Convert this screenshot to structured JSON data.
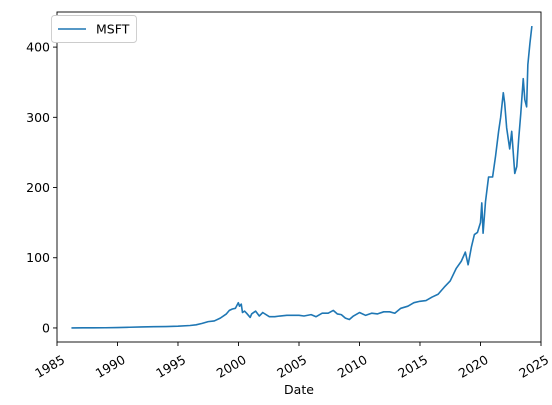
{
  "chart_data": {
    "type": "line",
    "xlabel": "Date",
    "ylabel": "",
    "xlim": [
      "1985-01-01",
      "2025-01-01"
    ],
    "ylim": [
      -20,
      450
    ],
    "x_ticks": [
      "1985",
      "1990",
      "1995",
      "2000",
      "2005",
      "2010",
      "2015",
      "2020",
      "2025"
    ],
    "y_ticks": [
      0,
      100,
      200,
      300,
      400
    ],
    "grid": false,
    "legend": "top-left",
    "colors": {
      "series": "#1f77b4",
      "axes": "#000000",
      "background": "#ffffff"
    },
    "series": [
      {
        "name": "MSFT",
        "points": [
          [
            "1986-03-13",
            0.07
          ],
          [
            "1987-03-01",
            0.2
          ],
          [
            "1988-01-01",
            0.25
          ],
          [
            "1989-01-01",
            0.3
          ],
          [
            "1990-01-01",
            0.6
          ],
          [
            "1991-01-01",
            1.0
          ],
          [
            "1992-01-01",
            1.5
          ],
          [
            "1993-01-01",
            1.8
          ],
          [
            "1994-01-01",
            2.0
          ],
          [
            "1995-01-01",
            2.5
          ],
          [
            "1996-01-01",
            3.5
          ],
          [
            "1996-07-01",
            4.5
          ],
          [
            "1997-01-01",
            6.5
          ],
          [
            "1997-07-01",
            9.0
          ],
          [
            "1998-01-01",
            10.0
          ],
          [
            "1998-07-01",
            14.0
          ],
          [
            "1999-01-01",
            20.0
          ],
          [
            "1999-04-01",
            25.0
          ],
          [
            "1999-07-01",
            27.0
          ],
          [
            "1999-10-01",
            28.0
          ],
          [
            "1999-12-27",
            36.0
          ],
          [
            "2000-02-01",
            31.0
          ],
          [
            "2000-03-25",
            34.0
          ],
          [
            "2000-05-01",
            22.0
          ],
          [
            "2000-07-01",
            24.0
          ],
          [
            "2000-09-01",
            21.0
          ],
          [
            "2000-12-20",
            15.0
          ],
          [
            "2001-02-01",
            20.0
          ],
          [
            "2001-06-01",
            24.0
          ],
          [
            "2001-09-20",
            17.0
          ],
          [
            "2002-01-01",
            22.0
          ],
          [
            "2002-07-20",
            16.0
          ],
          [
            "2003-01-01",
            16.0
          ],
          [
            "2003-06-01",
            17.0
          ],
          [
            "2004-01-01",
            18.0
          ],
          [
            "2004-08-01",
            18.0
          ],
          [
            "2005-01-01",
            18.0
          ],
          [
            "2005-06-01",
            17.0
          ],
          [
            "2006-01-01",
            19.0
          ],
          [
            "2006-06-01",
            16.0
          ],
          [
            "2006-12-01",
            21.0
          ],
          [
            "2007-06-01",
            21.0
          ],
          [
            "2007-11-01",
            25.0
          ],
          [
            "2008-03-01",
            20.0
          ],
          [
            "2008-07-01",
            19.0
          ],
          [
            "2008-11-01",
            14.0
          ],
          [
            "2009-03-01",
            12.0
          ],
          [
            "2009-07-01",
            17.0
          ],
          [
            "2010-01-01",
            22.0
          ],
          [
            "2010-07-01",
            18.0
          ],
          [
            "2011-01-01",
            21.0
          ],
          [
            "2011-07-01",
            20.0
          ],
          [
            "2012-01-01",
            23.0
          ],
          [
            "2012-07-01",
            23.0
          ],
          [
            "2012-12-01",
            21.0
          ],
          [
            "2013-06-01",
            28.0
          ],
          [
            "2014-01-01",
            31.0
          ],
          [
            "2014-07-01",
            36.0
          ],
          [
            "2015-01-01",
            38.0
          ],
          [
            "2015-07-01",
            39.0
          ],
          [
            "2016-01-01",
            44.0
          ],
          [
            "2016-07-01",
            48.0
          ],
          [
            "2017-01-01",
            58.0
          ],
          [
            "2017-07-01",
            67.0
          ],
          [
            "2018-01-01",
            85.0
          ],
          [
            "2018-06-01",
            95.0
          ],
          [
            "2018-10-01",
            108.0
          ],
          [
            "2018-12-24",
            90.0
          ],
          [
            "2019-04-01",
            115.0
          ],
          [
            "2019-07-01",
            133.0
          ],
          [
            "2019-10-01",
            136.0
          ],
          [
            "2020-01-01",
            150.0
          ],
          [
            "2020-02-10",
            178.0
          ],
          [
            "2020-03-20",
            135.0
          ],
          [
            "2020-06-01",
            180.0
          ],
          [
            "2020-09-01",
            215.0
          ],
          [
            "2021-01-01",
            215.0
          ],
          [
            "2021-04-01",
            245.0
          ],
          [
            "2021-07-01",
            280.0
          ],
          [
            "2021-09-01",
            300.0
          ],
          [
            "2021-11-20",
            335.0
          ],
          [
            "2022-01-01",
            320.0
          ],
          [
            "2022-03-01",
            285.0
          ],
          [
            "2022-06-01",
            255.0
          ],
          [
            "2022-08-01",
            280.0
          ],
          [
            "2022-11-01",
            220.0
          ],
          [
            "2023-01-01",
            230.0
          ],
          [
            "2023-03-01",
            270.0
          ],
          [
            "2023-05-01",
            305.0
          ],
          [
            "2023-07-15",
            355.0
          ],
          [
            "2023-09-01",
            325.0
          ],
          [
            "2023-10-25",
            315.0
          ],
          [
            "2023-12-01",
            375.0
          ],
          [
            "2024-02-01",
            405.0
          ],
          [
            "2024-03-20",
            425.0
          ],
          [
            "2024-04-01",
            430.0
          ]
        ]
      }
    ]
  }
}
